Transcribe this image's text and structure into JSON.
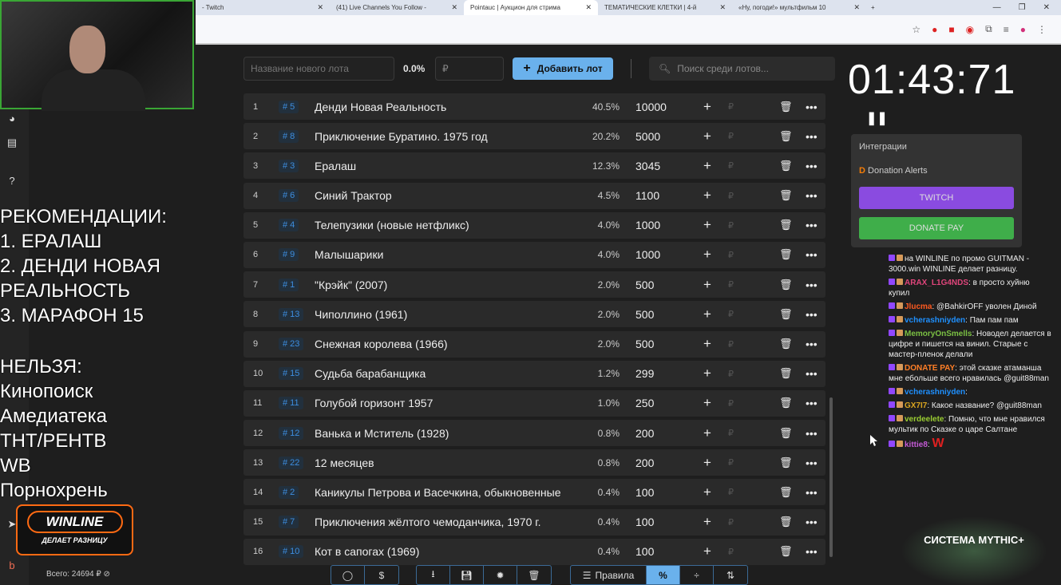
{
  "browser": {
    "tabs": [
      {
        "title": "- Twitch"
      },
      {
        "title": "(41) Live Channels You Follow -"
      },
      {
        "title": "Pointauc | Аукцион для стрима",
        "active": true
      },
      {
        "title": "ТЕМАТИЧЕСКИЕ КЛЕТКИ | 4-й"
      },
      {
        "title": "«Ну, погоди!» мультфильм 10"
      }
    ]
  },
  "overlay": {
    "rec_title": "РЕКОМЕНДАЦИИ:",
    "rec": [
      "1. ЕРАЛАШ",
      "2. ДЕНДИ НОВАЯ РЕАЛЬНОСТЬ",
      "3. МАРАФОН 15"
    ],
    "ban_title": "НЕЛЬЗЯ:",
    "ban": [
      "Кинопоиск",
      "Амедиатека",
      "ТНТ/РЕНТВ",
      "WB",
      "Порнохрень"
    ]
  },
  "controls": {
    "new_lot_placeholder": "Название нового лота",
    "percent": "0.0%",
    "amount_placeholder": "₽",
    "add_lot": "Добавить лот",
    "search_placeholder": "Поиск среди лотов..."
  },
  "lots": [
    {
      "n": "1",
      "id": "# 5",
      "name": "Денди Новая Реальность",
      "pct": "40.5%",
      "amount": "10000"
    },
    {
      "n": "2",
      "id": "# 8",
      "name": "Приключение Буратино. 1975 год",
      "pct": "20.2%",
      "amount": "5000"
    },
    {
      "n": "3",
      "id": "# 3",
      "name": "Ералаш",
      "pct": "12.3%",
      "amount": "3045"
    },
    {
      "n": "4",
      "id": "# 6",
      "name": "Синий Трактор",
      "pct": "4.5%",
      "amount": "1100"
    },
    {
      "n": "5",
      "id": "# 4",
      "name": "Телепузики (новые нетфликс)",
      "pct": "4.0%",
      "amount": "1000"
    },
    {
      "n": "6",
      "id": "# 9",
      "name": "Малышарики",
      "pct": "4.0%",
      "amount": "1000"
    },
    {
      "n": "7",
      "id": "# 1",
      "name": "\"Крэйк\" (2007)",
      "pct": "2.0%",
      "amount": "500"
    },
    {
      "n": "8",
      "id": "# 13",
      "name": "Чиполлино (1961)",
      "pct": "2.0%",
      "amount": "500"
    },
    {
      "n": "9",
      "id": "# 23",
      "name": "Снежная королева (1966)",
      "pct": "2.0%",
      "amount": "500"
    },
    {
      "n": "10",
      "id": "# 15",
      "name": "Судьба барабанщика",
      "pct": "1.2%",
      "amount": "299"
    },
    {
      "n": "11",
      "id": "# 11",
      "name": "Голубой горизонт 1957",
      "pct": "1.0%",
      "amount": "250"
    },
    {
      "n": "12",
      "id": "# 12",
      "name": "Ванька и Мститель (1928)",
      "pct": "0.8%",
      "amount": "200"
    },
    {
      "n": "13",
      "id": "# 22",
      "name": "12 месяцев",
      "pct": "0.8%",
      "amount": "200"
    },
    {
      "n": "14",
      "id": "# 2",
      "name": "Каникулы Петрова и Васечкина, обыкновенные",
      "pct": "0.4%",
      "amount": "100"
    },
    {
      "n": "15",
      "id": "# 7",
      "name": "Приключения жёлтого чемоданчика, 1970 г.",
      "pct": "0.4%",
      "amount": "100"
    },
    {
      "n": "16",
      "id": "# 10",
      "name": "Кот в сапогах (1969)",
      "pct": "0.4%",
      "amount": "100"
    }
  ],
  "timer": "01:43:71",
  "integrations": {
    "title": "Интеграции",
    "donation": "Donation Alerts",
    "twitch": "TWITCH",
    "donatepay": "DONATE PAY"
  },
  "chat": [
    {
      "user": "",
      "text": "на WINLINE по промо GUITMAN - 3000.win WINLINE делает разницу.",
      "color": "#fff"
    },
    {
      "user": "ARAX_L1G4NDS",
      "text": "в просто хуйню купил",
      "color": "#e0457b"
    },
    {
      "user": "Jlucma",
      "text": "@BahkirOFF уволен Диной",
      "color": "#ff5a1f"
    },
    {
      "user": "vcherashniyden",
      "text": "Пам пам пам",
      "color": "#1e90ff"
    },
    {
      "user": "MemoryOnSmells",
      "text": "Новодел делается в цифре и пишется на винил. Старые с мастер-пленок делали",
      "color": "#7bc043"
    },
    {
      "user": "DONATE PAY",
      "text": "этой сказке атаманша мне ебольше всего нравилась @guit88man",
      "color": "#ff7f27"
    },
    {
      "user": "vcherashniyden",
      "text": "",
      "color": "#1e90ff"
    },
    {
      "user": "GX7I7",
      "text": "Какое название? @guit88man",
      "color": "#daa520"
    },
    {
      "user": "verdeelete",
      "text": "Помню, что мне нравился мультик по Сказке о царе Салтане",
      "color": "#9acd32"
    },
    {
      "user": "kittie8",
      "text": "W",
      "color": "#c45ad6"
    }
  ],
  "sponsor": {
    "line1": "WINLINE",
    "line2": "ДЕЛАЕТ РАЗНИЦУ"
  },
  "total": "Всего: 24694 ₽",
  "toolbar": {
    "rules": "Правила",
    "percent": "%"
  },
  "badge_logo": "СИСТЕМА MYTHIC+",
  "colors": {
    "accent": "#6ab1ec",
    "background": "#1e1e1e",
    "row": "#2a2a2a"
  }
}
